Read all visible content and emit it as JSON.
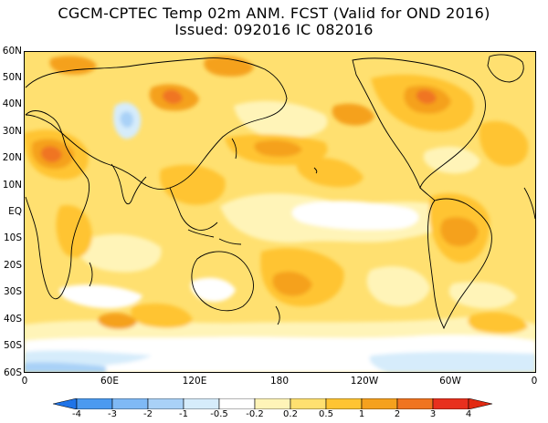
{
  "title": {
    "line1": "CGCM-CPTEC Temp 02m ANM. FCST  (Valid for OND 2016)",
    "line2": "Issued:  092016 IC 082016"
  },
  "axes": {
    "lat_labels": [
      "60N",
      "50N",
      "40N",
      "30N",
      "20N",
      "10N",
      "EQ",
      "10S",
      "20S",
      "30S",
      "40S",
      "50S",
      "60S"
    ],
    "lon_labels": [
      "0",
      "60E",
      "120E",
      "180",
      "120W",
      "60W",
      "0"
    ]
  },
  "colorbar": {
    "labels": [
      "-4",
      "-3",
      "-2",
      "-1",
      "-0.5",
      "-0.2",
      "0.2",
      "0.5",
      "1",
      "2",
      "3",
      "4"
    ],
    "colors": [
      "#1e6fe0",
      "#4b9af0",
      "#7fb9f5",
      "#a9d1f7",
      "#d6ecfb",
      "#ffffff",
      "#fff4b8",
      "#ffe070",
      "#ffc432",
      "#f5a11e",
      "#f07420",
      "#e8301e"
    ],
    "left_arrow_color": "#1f74e8",
    "right_arrow_color": "#e22a12"
  },
  "map": {
    "background_color": "#ffe070",
    "coast_color": "#000000"
  }
}
